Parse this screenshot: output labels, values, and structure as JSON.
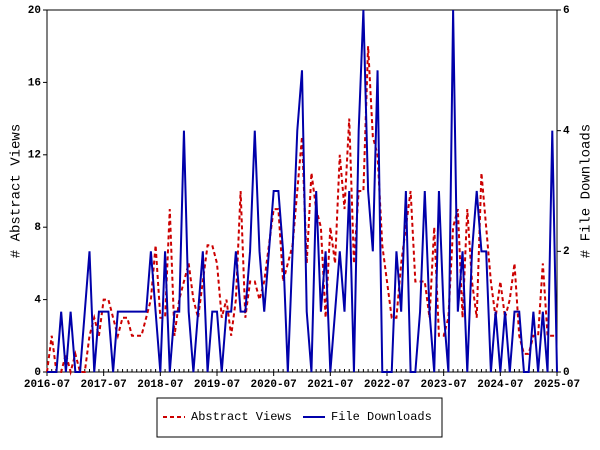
{
  "chart_data": {
    "type": "line",
    "x": [
      "2016-07",
      "2016-08",
      "2016-09",
      "2016-10",
      "2016-11",
      "2016-12",
      "2017-01",
      "2017-02",
      "2017-03",
      "2017-04",
      "2017-05",
      "2017-06",
      "2017-07",
      "2017-08",
      "2017-09",
      "2017-10",
      "2017-11",
      "2017-12",
      "2018-01",
      "2018-02",
      "2018-03",
      "2018-04",
      "2018-05",
      "2018-06",
      "2018-07",
      "2018-08",
      "2018-09",
      "2018-10",
      "2018-11",
      "2018-12",
      "2019-01",
      "2019-02",
      "2019-03",
      "2019-04",
      "2019-05",
      "2019-06",
      "2019-07",
      "2019-08",
      "2019-09",
      "2019-10",
      "2019-11",
      "2019-12",
      "2020-01",
      "2020-02",
      "2020-03",
      "2020-04",
      "2020-05",
      "2020-06",
      "2020-07",
      "2020-08",
      "2020-09",
      "2020-10",
      "2020-11",
      "2020-12",
      "2021-01",
      "2021-02",
      "2021-03",
      "2021-04",
      "2021-05",
      "2021-06",
      "2021-07",
      "2021-08",
      "2021-09",
      "2021-10",
      "2021-11",
      "2021-12",
      "2022-01",
      "2022-02",
      "2022-03",
      "2022-04",
      "2022-05",
      "2022-06",
      "2022-07",
      "2022-08",
      "2022-09",
      "2022-10",
      "2022-11",
      "2022-12",
      "2023-01",
      "2023-02",
      "2023-03",
      "2023-04",
      "2023-05",
      "2023-06",
      "2023-07",
      "2023-08",
      "2023-09",
      "2023-10",
      "2023-11",
      "2023-12",
      "2024-01",
      "2024-02",
      "2024-03",
      "2024-04",
      "2024-05",
      "2024-06",
      "2024-07",
      "2024-08",
      "2024-09",
      "2024-10",
      "2024-11",
      "2024-12",
      "2025-01",
      "2025-02",
      "2025-03",
      "2025-04",
      "2025-05",
      "2025-06",
      "2025-07"
    ],
    "xlim": [
      "2016-07",
      "2025-07"
    ],
    "xticks": [
      "2016-07",
      "2017-07",
      "2018-07",
      "2019-07",
      "2020-07",
      "2021-07",
      "2022-07",
      "2023-07",
      "2024-07",
      "2025-07"
    ],
    "ylabel": "# Abstract Views",
    "y2label": "# File Downloads",
    "ylim": [
      0,
      20
    ],
    "yticks": [
      0,
      4,
      8,
      12,
      16,
      20
    ],
    "y2lim": [
      0,
      6
    ],
    "y2ticks": [
      0,
      2,
      4,
      6
    ],
    "legend": "bottom",
    "series": [
      {
        "name": "Abstract Views",
        "color": "#cc0000",
        "dash": true,
        "values": [
          0,
          2,
          0,
          0,
          1,
          0,
          1,
          0,
          0,
          2,
          3,
          2,
          4,
          4,
          3,
          2,
          3,
          3,
          2,
          2,
          2,
          3,
          4,
          7,
          3,
          3,
          9,
          2,
          4,
          5,
          6,
          4,
          3,
          5,
          7,
          7,
          6,
          3,
          4,
          2,
          4,
          10,
          3,
          5,
          5,
          4,
          5,
          7,
          9,
          9,
          5,
          6,
          7,
          10,
          13,
          6,
          11,
          9,
          8,
          3,
          8,
          6,
          12,
          9,
          14,
          6,
          10,
          10,
          18,
          13,
          12,
          7,
          5,
          3,
          3,
          6,
          8,
          10,
          5,
          5,
          5,
          3,
          8,
          2,
          2,
          3,
          8,
          9,
          3,
          9,
          5,
          3,
          11,
          8,
          5,
          3,
          5,
          3,
          4,
          6,
          2,
          1,
          1,
          2,
          2,
          6,
          2,
          2,
          2
        ]
      },
      {
        "name": "File Downloads",
        "color": "#0000aa",
        "dash": false,
        "axis": "y2",
        "values": [
          0,
          0,
          0,
          1,
          0,
          1,
          0,
          0,
          1,
          2,
          0,
          1,
          1,
          1,
          0,
          1,
          1,
          1,
          1,
          1,
          1,
          1,
          2,
          1,
          0,
          2,
          0,
          1,
          1,
          4,
          1,
          0,
          1,
          2,
          0,
          1,
          1,
          0,
          1,
          1,
          2,
          1,
          1,
          2,
          4,
          2,
          1,
          2,
          3,
          3,
          2,
          0,
          2,
          4,
          5,
          1,
          0,
          3,
          1,
          2,
          0,
          1,
          2,
          1,
          3,
          0,
          4,
          6,
          3,
          2,
          5,
          0,
          0,
          0,
          2,
          1,
          3,
          0,
          0,
          1,
          3,
          1,
          0,
          3,
          1,
          0,
          6,
          1,
          2,
          0,
          2,
          3,
          2,
          2,
          0,
          1,
          0,
          1,
          0,
          1,
          1,
          0,
          0,
          1,
          0,
          1,
          0,
          4,
          0
        ]
      }
    ]
  }
}
